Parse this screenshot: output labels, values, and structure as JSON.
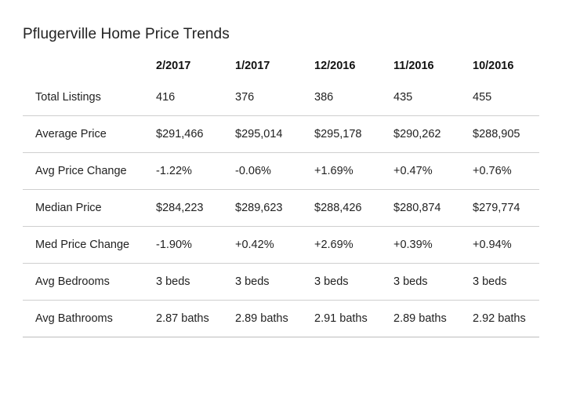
{
  "title": "Pflugerville Home Price Trends",
  "columns": [
    "2/2017",
    "1/2017",
    "12/2016",
    "11/2016",
    "10/2016"
  ],
  "rows": [
    {
      "label": "Total Listings",
      "values": [
        "416",
        "376",
        "386",
        "435",
        "455"
      ]
    },
    {
      "label": "Average Price",
      "values": [
        "$291,466",
        "$295,014",
        "$295,178",
        "$290,262",
        "$288,905"
      ]
    },
    {
      "label": "Avg Price Change",
      "values": [
        "-1.22%",
        "-0.06%",
        "+1.69%",
        "+0.47%",
        "+0.76%"
      ]
    },
    {
      "label": "Median Price",
      "values": [
        "$284,223",
        "$289,623",
        "$288,426",
        "$280,874",
        "$279,774"
      ]
    },
    {
      "label": "Med Price Change",
      "values": [
        "-1.90%",
        "+0.42%",
        "+2.69%",
        "+0.39%",
        "+0.94%"
      ]
    },
    {
      "label": "Avg Bedrooms",
      "values": [
        "3 beds",
        "3 beds",
        "3 beds",
        "3 beds",
        "3 beds"
      ]
    },
    {
      "label": "Avg Bathrooms",
      "values": [
        "2.87 baths",
        "2.89 baths",
        "2.91 baths",
        "2.89 baths",
        "2.92 baths"
      ]
    }
  ]
}
